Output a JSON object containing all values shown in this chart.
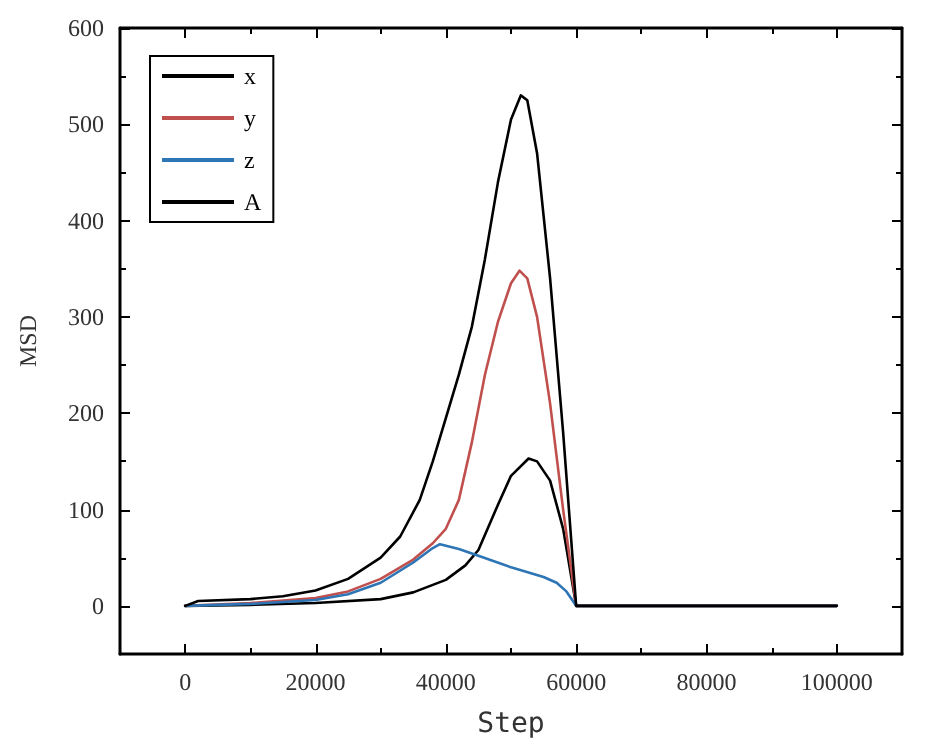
{
  "chart_data": {
    "type": "line",
    "xlabel": "Step",
    "ylabel": "MSD",
    "xlim": [
      -10000,
      110000
    ],
    "xticks": [
      0,
      20000,
      40000,
      60000,
      80000,
      100000
    ],
    "ylim": [
      -50,
      600
    ],
    "yticks": [
      0,
      100,
      200,
      300,
      400,
      500,
      600
    ],
    "grid": false,
    "legend": "top left",
    "marker": "none",
    "line_style": "solid",
    "series": [
      {
        "name": "x",
        "color": "#000000",
        "x": [
          0,
          10000,
          20000,
          30000,
          35000,
          40000,
          43000,
          45000,
          48000,
          50000,
          52700,
          54000,
          56000,
          58000,
          60000,
          100000
        ],
        "values": [
          0,
          1,
          3,
          7,
          14,
          27,
          42,
          58,
          105,
          135,
          153,
          150,
          130,
          80,
          0,
          0
        ]
      },
      {
        "name": "y",
        "color": "#c0504d",
        "x": [
          0,
          10000,
          20000,
          25000,
          30000,
          35000,
          38000,
          40000,
          42000,
          44000,
          46000,
          48000,
          50000,
          51300,
          52500,
          54000,
          56000,
          58000,
          60000,
          100000
        ],
        "values": [
          0,
          3,
          8,
          15,
          28,
          48,
          65,
          80,
          110,
          170,
          240,
          295,
          335,
          348,
          340,
          300,
          210,
          100,
          0,
          0
        ]
      },
      {
        "name": "z",
        "color": "#2e75b6",
        "x": [
          0,
          10000,
          20000,
          25000,
          30000,
          35000,
          38000,
          39100,
          42000,
          45000,
          50000,
          55000,
          57000,
          58500,
          60000,
          100000
        ],
        "values": [
          0,
          2,
          6,
          12,
          24,
          45,
          60,
          64,
          59,
          52,
          40,
          30,
          24,
          15,
          0,
          0
        ]
      },
      {
        "name": "A",
        "color": "#000000",
        "x": [
          0,
          2000,
          10000,
          15000,
          20000,
          25000,
          30000,
          33000,
          36000,
          38000,
          40000,
          42000,
          44000,
          46000,
          48000,
          50000,
          51500,
          52500,
          54000,
          56000,
          58000,
          60000,
          100000
        ],
        "values": [
          0,
          5,
          7,
          10,
          16,
          28,
          50,
          72,
          110,
          150,
          195,
          240,
          290,
          360,
          440,
          505,
          530,
          525,
          470,
          340,
          180,
          0,
          0
        ]
      }
    ]
  }
}
